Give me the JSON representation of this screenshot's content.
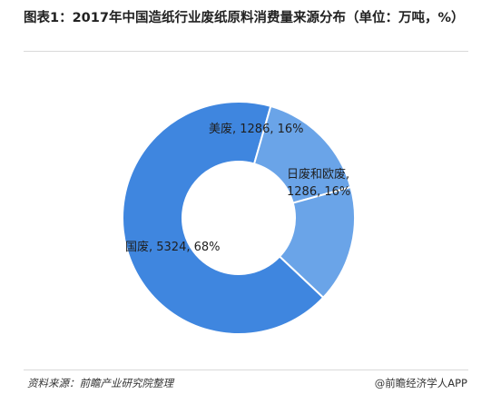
{
  "header": {
    "title": "图表1：2017年中国造纸行业废纸原料消费量来源分布（单位：万吨，%）"
  },
  "footer": {
    "source": "资料来源：前瞻产业研究院整理",
    "brand": "@前瞻经济学人APP"
  },
  "chart_data": {
    "type": "pie",
    "donut": true,
    "title": "图表1：2017年中国造纸行业废纸原料消费量来源分布（单位：万吨，%）",
    "legend": "none",
    "slices": [
      {
        "label": "美废",
        "value": 1286,
        "percent": 16,
        "label_text": [
          "美废, 1286, 16%"
        ],
        "color": "#6aa4e8"
      },
      {
        "label": "日废和欧废",
        "value": 1286,
        "percent": 16,
        "label_text": [
          "日废和欧废,",
          "1286, 16%"
        ],
        "color": "#6aa4e8"
      },
      {
        "label": "国废",
        "value": 5324,
        "percent": 68,
        "label_text": [
          "国废, 5324, 68%"
        ],
        "color": "#3f86df"
      }
    ]
  }
}
